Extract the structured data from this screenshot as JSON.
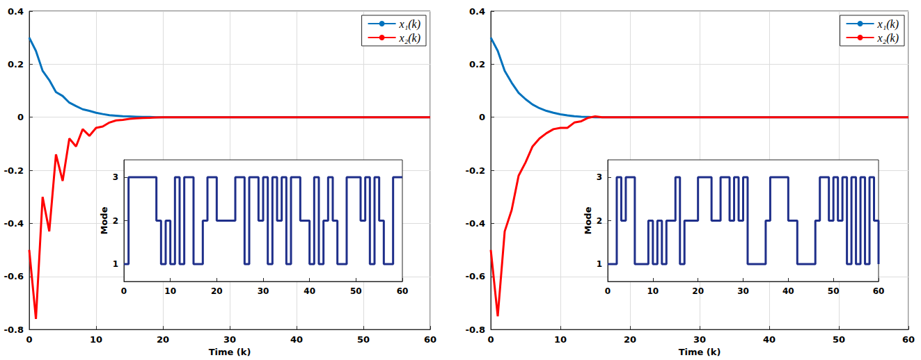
{
  "chart_data": [
    {
      "type": "line",
      "x": [
        0,
        1,
        2,
        3,
        4,
        5,
        6,
        7,
        8,
        9,
        10,
        11,
        12,
        13,
        14,
        15,
        16,
        17,
        18,
        19,
        20,
        21,
        22,
        23,
        24,
        25,
        26,
        27,
        28,
        29,
        30,
        31,
        32,
        33,
        34,
        35,
        36,
        37,
        38,
        39,
        40,
        41,
        42,
        43,
        44,
        45,
        46,
        47,
        48,
        49,
        50,
        51,
        52,
        53,
        54,
        55,
        56,
        57,
        58,
        59,
        60
      ],
      "series": [
        {
          "name": "x₁(k)",
          "color": "#0072bd",
          "values": [
            0.3,
            0.25,
            0.175,
            0.14,
            0.095,
            0.08,
            0.055,
            0.042,
            0.03,
            0.024,
            0.017,
            0.012,
            0.008,
            0.006,
            0.004,
            0.003,
            0.002,
            0.001,
            0.001,
            0,
            0,
            0,
            0,
            0,
            0,
            0,
            0,
            0,
            0,
            0,
            0,
            0,
            0,
            0,
            0,
            0,
            0,
            0,
            0,
            0,
            0,
            0,
            0,
            0,
            0,
            0,
            0,
            0,
            0,
            0,
            0,
            0,
            0,
            0,
            0,
            0,
            0,
            0,
            0,
            0,
            0
          ]
        },
        {
          "name": "x₂(k)",
          "color": "#ff0000",
          "values": [
            -0.5,
            -0.76,
            -0.3,
            -0.43,
            -0.14,
            -0.24,
            -0.08,
            -0.11,
            -0.045,
            -0.07,
            -0.04,
            -0.035,
            -0.02,
            -0.012,
            -0.01,
            -0.006,
            -0.004,
            -0.003,
            -0.002,
            -0.001,
            0,
            0,
            0,
            0,
            0,
            0,
            0,
            0,
            0,
            0,
            0,
            0,
            0,
            0,
            0,
            0,
            0,
            0,
            0,
            0,
            0,
            0,
            0,
            0,
            0,
            0,
            0,
            0,
            0,
            0,
            0,
            0,
            0,
            0,
            0,
            0,
            0,
            0,
            0,
            0,
            0
          ]
        }
      ],
      "xlim": [
        0,
        60
      ],
      "xticks": [
        0,
        10,
        20,
        30,
        40,
        50,
        60
      ],
      "ylim": [
        -0.8,
        0.4
      ],
      "yticks": [
        -0.8,
        -0.6,
        -0.4,
        -0.2,
        0,
        0.2,
        0.4
      ],
      "xlabel": "Time (k)",
      "grid": true,
      "legend": "upper right",
      "inset": {
        "type": "line",
        "line_style": "step",
        "color": "#1f2f8a",
        "x": [
          0,
          1,
          2,
          3,
          4,
          5,
          6,
          7,
          8,
          9,
          10,
          11,
          12,
          13,
          14,
          15,
          16,
          17,
          18,
          19,
          20,
          21,
          22,
          23,
          24,
          25,
          26,
          27,
          28,
          29,
          30,
          31,
          32,
          33,
          34,
          35,
          36,
          37,
          38,
          39,
          40,
          41,
          42,
          43,
          44,
          45,
          46,
          47,
          48,
          49,
          50,
          51,
          52,
          53,
          54,
          55,
          56,
          57,
          58,
          59,
          60
        ],
        "values": [
          1,
          3,
          3,
          3,
          3,
          3,
          3,
          2,
          1,
          2,
          1,
          3,
          1,
          3,
          3,
          1,
          1,
          2,
          3,
          3,
          2,
          2,
          2,
          2,
          3,
          3,
          1,
          3,
          3,
          2,
          3,
          1,
          3,
          2,
          3,
          1,
          3,
          3,
          2,
          2,
          1,
          3,
          1,
          2,
          3,
          2,
          1,
          1,
          3,
          3,
          3,
          2,
          3,
          1,
          3,
          2,
          1,
          1,
          3,
          3,
          3
        ],
        "xlim": [
          0,
          60
        ],
        "xticks": [
          0,
          10,
          20,
          30,
          40,
          50,
          60
        ],
        "ylim": [
          0.6,
          3.4
        ],
        "yticks": [
          1,
          2,
          3
        ],
        "ylabel": "Mode"
      }
    },
    {
      "type": "line",
      "x": [
        0,
        1,
        2,
        3,
        4,
        5,
        6,
        7,
        8,
        9,
        10,
        11,
        12,
        13,
        14,
        15,
        16,
        17,
        18,
        19,
        20,
        21,
        22,
        23,
        24,
        25,
        26,
        27,
        28,
        29,
        30,
        31,
        32,
        33,
        34,
        35,
        36,
        37,
        38,
        39,
        40,
        41,
        42,
        43,
        44,
        45,
        46,
        47,
        48,
        49,
        50,
        51,
        52,
        53,
        54,
        55,
        56,
        57,
        58,
        59,
        60
      ],
      "series": [
        {
          "name": "x₁(k)",
          "color": "#0072bd",
          "values": [
            0.3,
            0.25,
            0.175,
            0.13,
            0.092,
            0.068,
            0.048,
            0.034,
            0.024,
            0.017,
            0.011,
            0.007,
            0.004,
            0.002,
            0.001,
            0,
            0,
            0,
            0,
            0,
            0,
            0,
            0,
            0,
            0,
            0,
            0,
            0,
            0,
            0,
            0,
            0,
            0,
            0,
            0,
            0,
            0,
            0,
            0,
            0,
            0,
            0,
            0,
            0,
            0,
            0,
            0,
            0,
            0,
            0,
            0,
            0,
            0,
            0,
            0,
            0,
            0,
            0,
            0,
            0,
            0
          ]
        },
        {
          "name": "x₂(k)",
          "color": "#ff0000",
          "values": [
            -0.5,
            -0.75,
            -0.43,
            -0.35,
            -0.22,
            -0.17,
            -0.11,
            -0.08,
            -0.06,
            -0.045,
            -0.04,
            -0.04,
            -0.02,
            -0.015,
            -0.002,
            0.003,
            0,
            0,
            0,
            0,
            0,
            0,
            0,
            0,
            0,
            0,
            0,
            0,
            0,
            0,
            0,
            0,
            0,
            0,
            0,
            0,
            0,
            0,
            0,
            0,
            0,
            0,
            0,
            0,
            0,
            0,
            0,
            0,
            0,
            0,
            0,
            0,
            0,
            0,
            0,
            0,
            0,
            0,
            0,
            0,
            0
          ]
        }
      ],
      "xlim": [
        0,
        60
      ],
      "xticks": [
        0,
        10,
        20,
        30,
        40,
        50,
        60
      ],
      "ylim": [
        -0.8,
        0.4
      ],
      "yticks": [
        -0.8,
        -0.6,
        -0.4,
        -0.2,
        0,
        0.2,
        0.4
      ],
      "xlabel": "Time (k)",
      "grid": true,
      "legend": "upper right",
      "inset": {
        "type": "line",
        "line_style": "step",
        "color": "#1f2f8a",
        "x": [
          0,
          1,
          2,
          3,
          4,
          5,
          6,
          7,
          8,
          9,
          10,
          11,
          12,
          13,
          14,
          15,
          16,
          17,
          18,
          19,
          20,
          21,
          22,
          23,
          24,
          25,
          26,
          27,
          28,
          29,
          30,
          31,
          32,
          33,
          34,
          35,
          36,
          37,
          38,
          39,
          40,
          41,
          42,
          43,
          44,
          45,
          46,
          47,
          48,
          49,
          50,
          51,
          52,
          53,
          54,
          55,
          56,
          57,
          58,
          59,
          60
        ],
        "values": [
          1,
          1,
          3,
          2,
          3,
          3,
          1,
          1,
          1,
          2,
          1,
          2,
          1,
          2,
          2,
          3,
          1,
          2,
          2,
          2,
          3,
          3,
          3,
          2,
          2,
          3,
          3,
          2,
          3,
          2,
          3,
          1,
          1,
          1,
          1,
          2,
          3,
          3,
          3,
          3,
          2,
          2,
          1,
          1,
          1,
          1,
          2,
          3,
          3,
          2,
          3,
          2,
          3,
          1,
          3,
          1,
          3,
          1,
          3,
          2,
          1
        ],
        "xlim": [
          0,
          60
        ],
        "xticks": [
          0,
          10,
          20,
          30,
          40,
          50,
          60
        ],
        "ylim": [
          0.6,
          3.4
        ],
        "yticks": [
          1,
          2,
          3
        ],
        "ylabel": "Mode"
      }
    }
  ]
}
